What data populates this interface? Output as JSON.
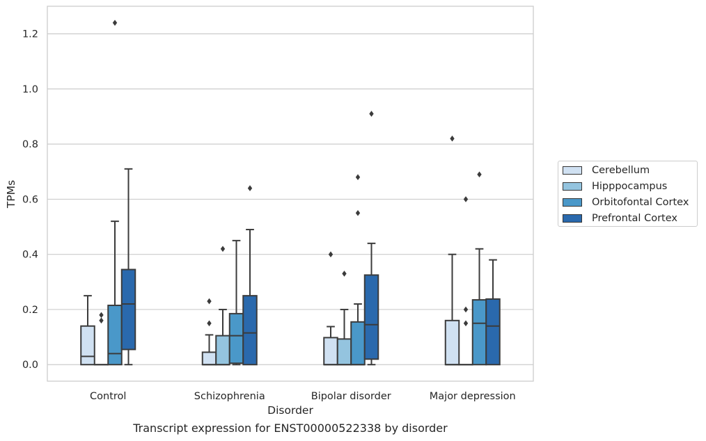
{
  "chart_data": {
    "type": "box",
    "title": "",
    "caption": "Transcript expression for ENST00000522338 by disorder",
    "xlabel": "Disorder",
    "ylabel": "TPMs",
    "ylim": [
      -0.06,
      1.3
    ],
    "yticks": [
      0.0,
      0.2,
      0.4,
      0.6,
      0.8,
      1.0,
      1.2
    ],
    "ytick_labels": [
      "0.0",
      "0.2",
      "0.4",
      "0.6",
      "0.8",
      "1.0",
      "1.2"
    ],
    "grid": "horizontal",
    "legend_position": "right",
    "categories": [
      "Control",
      "Schizophrenia",
      "Bipolar disorder",
      "Major depression"
    ],
    "series": [
      {
        "name": "Cerebellum",
        "color": "#d0e1f2",
        "boxes": [
          {
            "q1": 0.0,
            "median": 0.03,
            "q3": 0.14,
            "whisker_low": 0.0,
            "whisker_high": 0.25,
            "outliers": []
          },
          {
            "q1": 0.0,
            "median": 0.0,
            "q3": 0.045,
            "whisker_low": 0.0,
            "whisker_high": 0.108,
            "outliers": [
              0.15,
              0.23
            ]
          },
          {
            "q1": 0.0,
            "median": 0.0,
            "q3": 0.098,
            "whisker_low": 0.0,
            "whisker_high": 0.138,
            "outliers": [
              0.4
            ]
          },
          {
            "q1": 0.0,
            "median": 0.0,
            "q3": 0.16,
            "whisker_low": 0.0,
            "whisker_high": 0.4,
            "outliers": [
              0.82
            ]
          }
        ]
      },
      {
        "name": "Hipppocampus",
        "color": "#94c4df",
        "boxes": [
          {
            "q1": 0.0,
            "median": 0.0,
            "q3": 0.0,
            "whisker_low": 0.0,
            "whisker_high": 0.0,
            "outliers": [
              0.16,
              0.18
            ]
          },
          {
            "q1": 0.0,
            "median": 0.0,
            "q3": 0.105,
            "whisker_low": 0.0,
            "whisker_high": 0.2,
            "outliers": [
              0.42
            ]
          },
          {
            "q1": 0.0,
            "median": 0.0,
            "q3": 0.093,
            "whisker_low": 0.0,
            "whisker_high": 0.2,
            "outliers": [
              0.33
            ]
          },
          {
            "q1": 0.0,
            "median": 0.0,
            "q3": 0.0,
            "whisker_low": 0.0,
            "whisker_high": 0.0,
            "outliers": [
              0.15,
              0.2,
              0.6
            ]
          }
        ]
      },
      {
        "name": "Orbitofontal Cortex",
        "color": "#4a98c9",
        "boxes": [
          {
            "q1": 0.0,
            "median": 0.04,
            "q3": 0.215,
            "whisker_low": 0.0,
            "whisker_high": 0.52,
            "outliers": [
              1.24
            ]
          },
          {
            "q1": 0.005,
            "median": 0.105,
            "q3": 0.185,
            "whisker_low": 0.0,
            "whisker_high": 0.45,
            "outliers": []
          },
          {
            "q1": 0.0,
            "median": 0.0,
            "q3": 0.155,
            "whisker_low": 0.0,
            "whisker_high": 0.22,
            "outliers": [
              0.55,
              0.68
            ]
          },
          {
            "q1": 0.0,
            "median": 0.15,
            "q3": 0.235,
            "whisker_low": 0.0,
            "whisker_high": 0.42,
            "outliers": [
              0.69
            ]
          }
        ]
      },
      {
        "name": "Prefrontal Cortex",
        "color": "#2a69ad",
        "boxes": [
          {
            "q1": 0.055,
            "median": 0.22,
            "q3": 0.345,
            "whisker_low": 0.0,
            "whisker_high": 0.71,
            "outliers": []
          },
          {
            "q1": 0.0,
            "median": 0.115,
            "q3": 0.25,
            "whisker_low": 0.0,
            "whisker_high": 0.49,
            "outliers": [
              0.64
            ]
          },
          {
            "q1": 0.02,
            "median": 0.145,
            "q3": 0.325,
            "whisker_low": 0.0,
            "whisker_high": 0.44,
            "outliers": [
              0.91
            ]
          },
          {
            "q1": 0.0,
            "median": 0.14,
            "q3": 0.238,
            "whisker_low": 0.0,
            "whisker_high": 0.38,
            "outliers": []
          }
        ]
      }
    ]
  }
}
